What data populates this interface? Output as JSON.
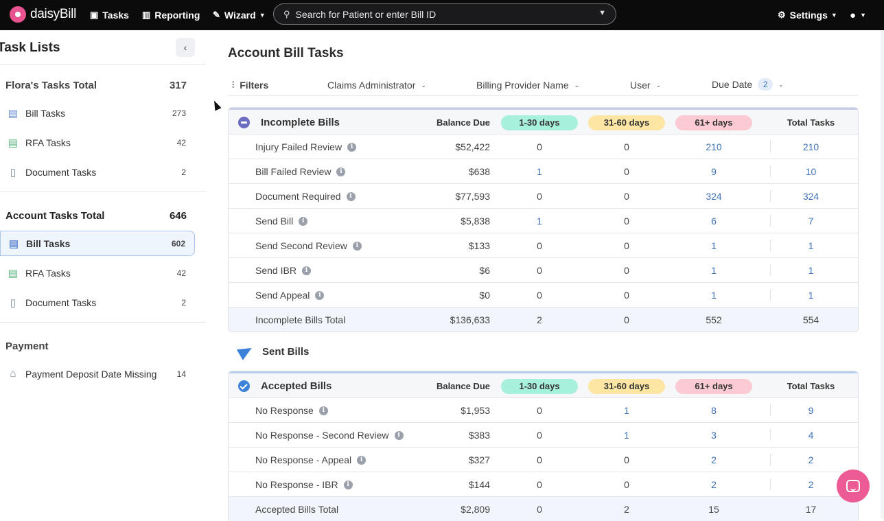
{
  "brand": "daisyBill",
  "nav": {
    "tasks": "Tasks",
    "reporting": "Reporting",
    "wizard": "Wizard",
    "settings": "Settings",
    "search_placeholder": "Search for Patient or enter Bill ID"
  },
  "sidebar": {
    "title": "Task Lists",
    "flora_label": "Flora's Tasks Total",
    "flora_count": "317",
    "flora_items": [
      {
        "label": "Bill Tasks",
        "count": "273"
      },
      {
        "label": "RFA Tasks",
        "count": "42"
      },
      {
        "label": "Document Tasks",
        "count": "2"
      }
    ],
    "account_label": "Account Tasks Total",
    "account_count": "646",
    "account_items": [
      {
        "label": "Bill Tasks",
        "count": "602"
      },
      {
        "label": "RFA Tasks",
        "count": "42"
      },
      {
        "label": "Document Tasks",
        "count": "2"
      }
    ],
    "payment_label": "Payment",
    "payment_items": [
      {
        "label": "Payment Deposit Date Missing",
        "count": "14"
      }
    ]
  },
  "main": {
    "title": "Account Bill Tasks",
    "filters": {
      "label": "Filters",
      "claims_admin": "Claims Administrator",
      "billing_provider": "Billing Provider Name",
      "user": "User",
      "due_date": "Due Date",
      "due_date_badge": "2"
    },
    "columns": {
      "balance": "Balance Due",
      "d1": "1-30 days",
      "d2": "31-60 days",
      "d3": "61+ days",
      "total": "Total Tasks"
    },
    "incomplete": {
      "title": "Incomplete Bills",
      "rows": [
        {
          "label": "Injury Failed Review",
          "balance": "$52,422",
          "d1": "0",
          "d2": "0",
          "d3": "210",
          "total": "210"
        },
        {
          "label": "Bill Failed Review",
          "balance": "$638",
          "d1": "1",
          "d2": "0",
          "d3": "9",
          "total": "10"
        },
        {
          "label": "Document Required",
          "balance": "$77,593",
          "d1": "0",
          "d2": "0",
          "d3": "324",
          "total": "324"
        },
        {
          "label": "Send Bill",
          "balance": "$5,838",
          "d1": "1",
          "d2": "0",
          "d3": "6",
          "total": "7"
        },
        {
          "label": "Send Second Review",
          "balance": "$133",
          "d1": "0",
          "d2": "0",
          "d3": "1",
          "total": "1"
        },
        {
          "label": "Send IBR",
          "balance": "$6",
          "d1": "0",
          "d2": "0",
          "d3": "1",
          "total": "1"
        },
        {
          "label": "Send Appeal",
          "balance": "$0",
          "d1": "0",
          "d2": "0",
          "d3": "1",
          "total": "1"
        }
      ],
      "total_row": {
        "label": "Incomplete Bills Total",
        "balance": "$136,633",
        "d1": "2",
        "d2": "0",
        "d3": "552",
        "total": "554"
      }
    },
    "sent_title": "Sent Bills",
    "accepted": {
      "title": "Accepted Bills",
      "rows": [
        {
          "label": "No Response",
          "balance": "$1,953",
          "d1": "0",
          "d2": "1",
          "d3": "8",
          "total": "9"
        },
        {
          "label": "No Response - Second Review",
          "balance": "$383",
          "d1": "0",
          "d2": "1",
          "d3": "3",
          "total": "4"
        },
        {
          "label": "No Response - Appeal",
          "balance": "$327",
          "d1": "0",
          "d2": "0",
          "d3": "2",
          "total": "2"
        },
        {
          "label": "No Response - IBR",
          "balance": "$144",
          "d1": "0",
          "d2": "0",
          "d3": "2",
          "total": "2"
        }
      ],
      "total_row": {
        "label": "Accepted Bills Total",
        "balance": "$2,809",
        "d1": "0",
        "d2": "2",
        "d3": "15",
        "total": "17"
      }
    }
  }
}
